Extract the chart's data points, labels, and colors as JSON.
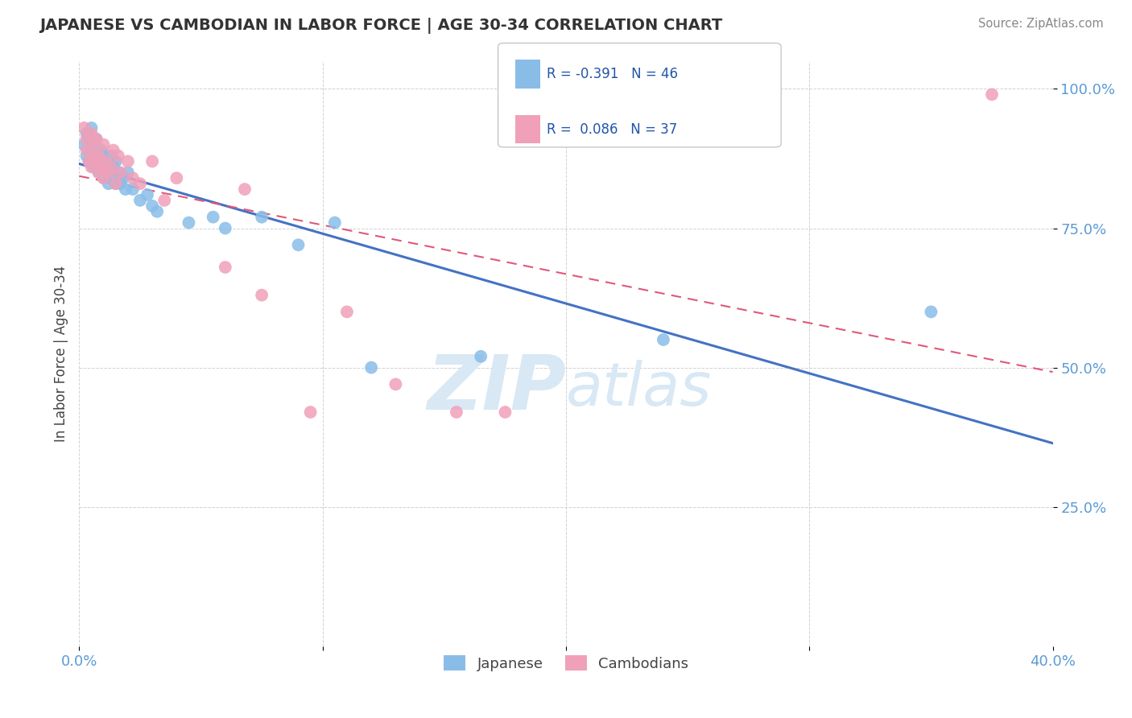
{
  "title": "JAPANESE VS CAMBODIAN IN LABOR FORCE | AGE 30-34 CORRELATION CHART",
  "source": "Source: ZipAtlas.com",
  "ylabel": "In Labor Force | Age 30-34",
  "xlim": [
    0.0,
    0.4
  ],
  "ylim": [
    0.0,
    1.05
  ],
  "xticks": [
    0.0,
    0.1,
    0.2,
    0.3,
    0.4
  ],
  "xticklabels": [
    "0.0%",
    "",
    "",
    "",
    "40.0%"
  ],
  "yticks": [
    0.25,
    0.5,
    0.75,
    1.0
  ],
  "yticklabels": [
    "25.0%",
    "50.0%",
    "75.0%",
    "100.0%"
  ],
  "r_japanese": -0.391,
  "n_japanese": 46,
  "r_cambodian": 0.086,
  "n_cambodian": 37,
  "japanese_color": "#89BDE8",
  "cambodian_color": "#F0A0B8",
  "japanese_line_color": "#4472C4",
  "cambodian_line_color": "#E05878",
  "watermark_color": "#D8E8F4",
  "legend_labels": [
    "Japanese",
    "Cambodians"
  ],
  "japanese_x": [
    0.002,
    0.003,
    0.003,
    0.004,
    0.004,
    0.005,
    0.005,
    0.006,
    0.006,
    0.007,
    0.007,
    0.008,
    0.008,
    0.009,
    0.009,
    0.01,
    0.01,
    0.011,
    0.011,
    0.012,
    0.012,
    0.013,
    0.013,
    0.014,
    0.015,
    0.015,
    0.016,
    0.017,
    0.018,
    0.019,
    0.02,
    0.022,
    0.025,
    0.028,
    0.03,
    0.032,
    0.045,
    0.055,
    0.06,
    0.075,
    0.09,
    0.105,
    0.12,
    0.165,
    0.24,
    0.35
  ],
  "japanese_y": [
    0.9,
    0.88,
    0.92,
    0.87,
    0.91,
    0.89,
    0.93,
    0.86,
    0.9,
    0.88,
    0.91,
    0.87,
    0.85,
    0.89,
    0.86,
    0.84,
    0.88,
    0.85,
    0.87,
    0.83,
    0.86,
    0.84,
    0.88,
    0.86,
    0.83,
    0.87,
    0.85,
    0.83,
    0.84,
    0.82,
    0.85,
    0.82,
    0.8,
    0.81,
    0.79,
    0.78,
    0.76,
    0.77,
    0.75,
    0.77,
    0.72,
    0.76,
    0.5,
    0.52,
    0.55,
    0.6
  ],
  "cambodian_x": [
    0.002,
    0.003,
    0.003,
    0.004,
    0.005,
    0.005,
    0.006,
    0.006,
    0.007,
    0.007,
    0.008,
    0.008,
    0.009,
    0.01,
    0.01,
    0.011,
    0.012,
    0.013,
    0.014,
    0.015,
    0.016,
    0.017,
    0.02,
    0.022,
    0.025,
    0.03,
    0.035,
    0.06,
    0.075,
    0.095,
    0.11,
    0.13,
    0.155,
    0.175,
    0.375,
    0.068,
    0.04
  ],
  "cambodian_y": [
    0.93,
    0.91,
    0.89,
    0.87,
    0.92,
    0.86,
    0.9,
    0.88,
    0.87,
    0.91,
    0.85,
    0.88,
    0.86,
    0.9,
    0.84,
    0.87,
    0.85,
    0.86,
    0.89,
    0.83,
    0.88,
    0.85,
    0.87,
    0.84,
    0.83,
    0.87,
    0.8,
    0.68,
    0.63,
    0.42,
    0.6,
    0.47,
    0.42,
    0.42,
    0.99,
    0.82,
    0.84
  ]
}
